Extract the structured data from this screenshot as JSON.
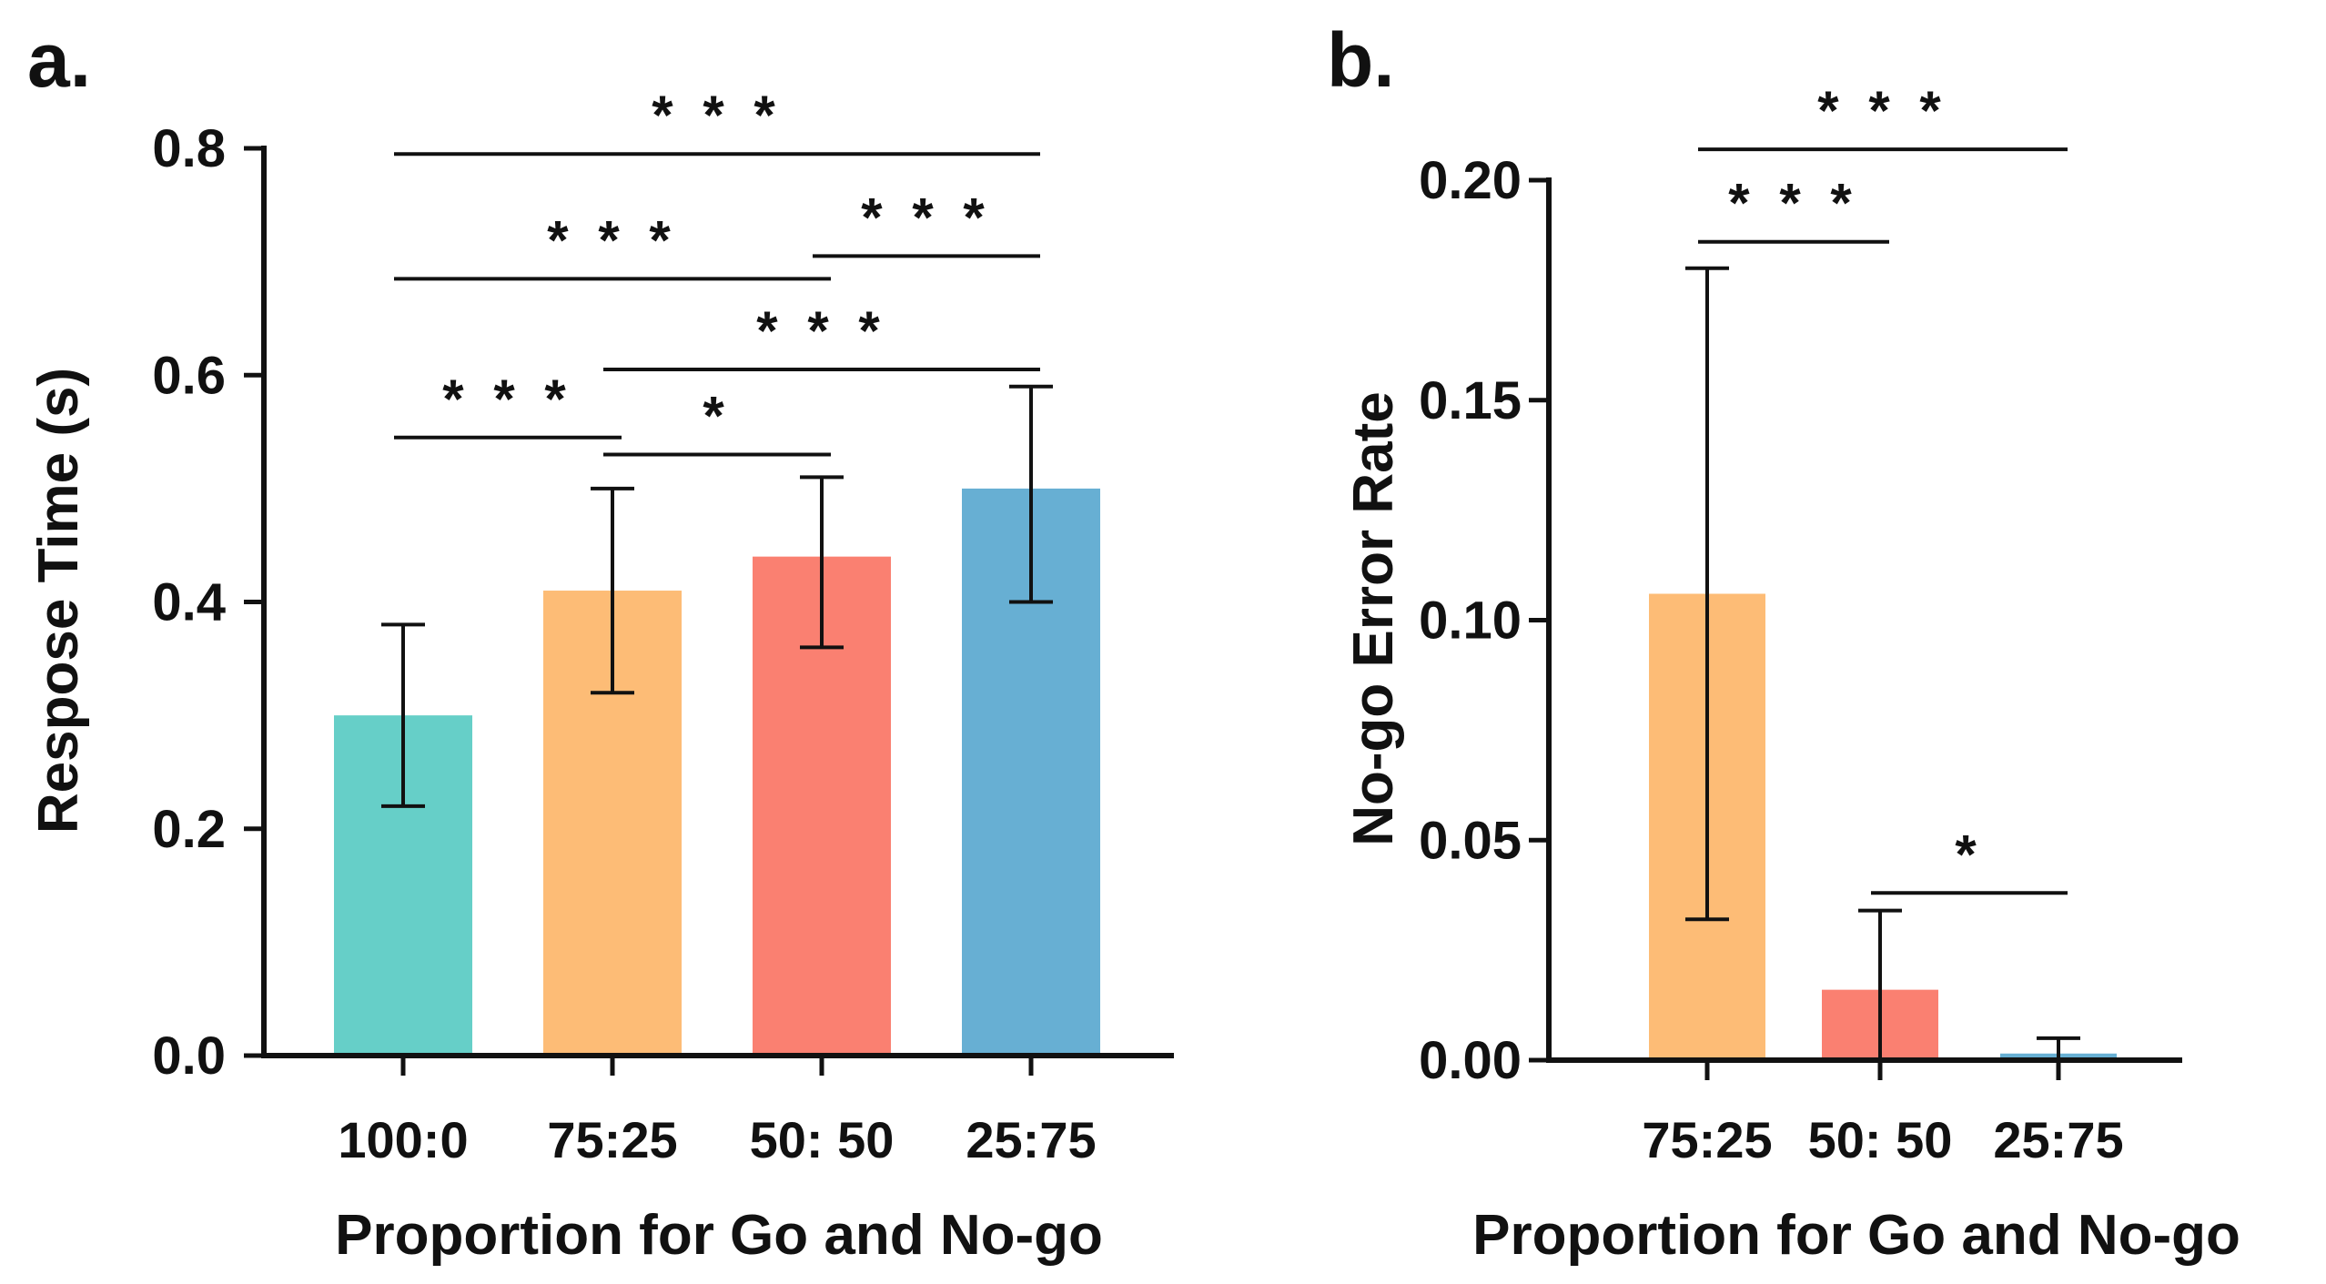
{
  "chart_data": [
    {
      "type": "bar",
      "panel_label": "a.",
      "title": "",
      "xlabel": "Proportion for Go and No-go",
      "ylabel": "Respose Time (s)",
      "categories": [
        "100:0",
        "75:25",
        "50: 50",
        "25:75"
      ],
      "values": [
        0.3,
        0.41,
        0.44,
        0.5
      ],
      "error_low": [
        0.22,
        0.32,
        0.36,
        0.4
      ],
      "error_high": [
        0.38,
        0.5,
        0.51,
        0.59
      ],
      "colors": [
        "#66CFC8",
        "#FDBC76",
        "#FA8071",
        "#67AFD3"
      ],
      "ylim": [
        0,
        0.8
      ],
      "yticks": [
        0.0,
        0.2,
        0.4,
        0.6,
        0.8
      ],
      "ytick_labels": [
        "0.0",
        "0.2",
        "0.4",
        "0.6",
        "0.8"
      ],
      "significance": [
        {
          "from": 0,
          "to": 3,
          "y": 0.795,
          "label": "* * *"
        },
        {
          "from": 0,
          "to": 2,
          "y": 0.685,
          "label": "* * *"
        },
        {
          "from": 2,
          "to": 3,
          "y": 0.705,
          "label": "* * *"
        },
        {
          "from": 1,
          "to": 3,
          "y": 0.605,
          "label": "* * *"
        },
        {
          "from": 0,
          "to": 1,
          "y": 0.545,
          "label": "* * *"
        },
        {
          "from": 1,
          "to": 2,
          "y": 0.53,
          "label": "*"
        }
      ],
      "grid": false,
      "legend": "none"
    },
    {
      "type": "bar",
      "panel_label": "b.",
      "title": "",
      "xlabel": "Proportion for Go and No-go",
      "ylabel": "No-go Error Rate",
      "categories": [
        "75:25",
        "50: 50",
        "25:75"
      ],
      "values": [
        0.106,
        0.016,
        0.0015
      ],
      "error_low": [
        0.032,
        0.0,
        0.0
      ],
      "error_high": [
        0.18,
        0.034,
        0.005
      ],
      "colors": [
        "#FDBC76",
        "#FA8071",
        "#67AFD3"
      ],
      "ylim": [
        0,
        0.2
      ],
      "yticks": [
        0.0,
        0.05,
        0.1,
        0.15,
        0.2
      ],
      "ytick_labels": [
        "0.00",
        "0.05",
        "0.10",
        "0.15",
        "0.20"
      ],
      "significance": [
        {
          "from": 0,
          "to": 2,
          "y": 0.207,
          "label": "* * *"
        },
        {
          "from": 0,
          "to": 1,
          "y": 0.186,
          "label": "* * *"
        },
        {
          "from": 1,
          "to": 2,
          "y": 0.038,
          "label": "*"
        }
      ],
      "grid": false,
      "legend": "none"
    }
  ]
}
